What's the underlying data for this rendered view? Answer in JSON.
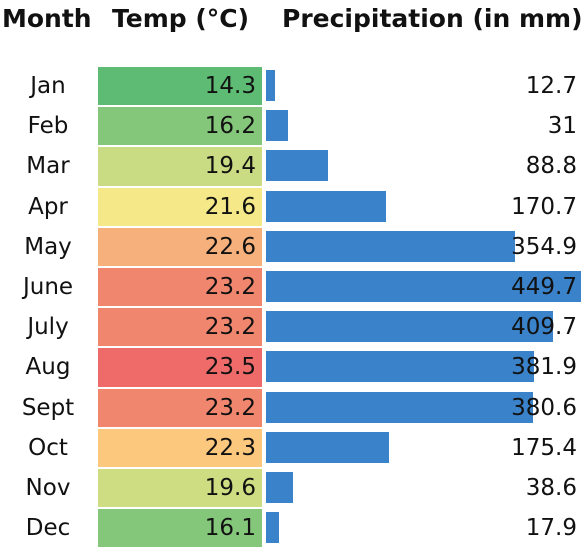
{
  "headers": {
    "month": "Month",
    "temp": "Temp (°C)",
    "precip": "Precipitation (in mm)"
  },
  "chart_data": {
    "type": "table",
    "columns": [
      "Month",
      "Temp (°C)",
      "Precipitation (in mm)"
    ],
    "rows": [
      {
        "month": "Jan",
        "temp": "14.3",
        "precip": "12.7",
        "temp_color": "#5dbb74"
      },
      {
        "month": "Feb",
        "temp": "16.2",
        "precip": "31",
        "temp_color": "#84c67a"
      },
      {
        "month": "Mar",
        "temp": "19.4",
        "precip": "88.8",
        "temp_color": "#c9dc84"
      },
      {
        "month": "Apr",
        "temp": "21.6",
        "precip": "170.7",
        "temp_color": "#f4e888"
      },
      {
        "month": "May",
        "temp": "22.6",
        "precip": "354.9",
        "temp_color": "#f6b07c"
      },
      {
        "month": "June",
        "temp": "23.2",
        "precip": "449.7",
        "temp_color": "#f1866f"
      },
      {
        "month": "July",
        "temp": "23.2",
        "precip": "409.7",
        "temp_color": "#f1866f"
      },
      {
        "month": "Aug",
        "temp": "23.5",
        "precip": "381.9",
        "temp_color": "#ee6b69"
      },
      {
        "month": "Sept",
        "temp": "23.2",
        "precip": "380.6",
        "temp_color": "#f1866f"
      },
      {
        "month": "Oct",
        "temp": "22.3",
        "precip": "175.4",
        "temp_color": "#fbc87e"
      },
      {
        "month": "Nov",
        "temp": "19.6",
        "precip": "38.6",
        "temp_color": "#cfdd82"
      },
      {
        "month": "Dec",
        "temp": "16.1",
        "precip": "17.9",
        "temp_color": "#84c67a"
      }
    ],
    "bar_color": "#3a82c9",
    "precip_max": 449.7
  }
}
